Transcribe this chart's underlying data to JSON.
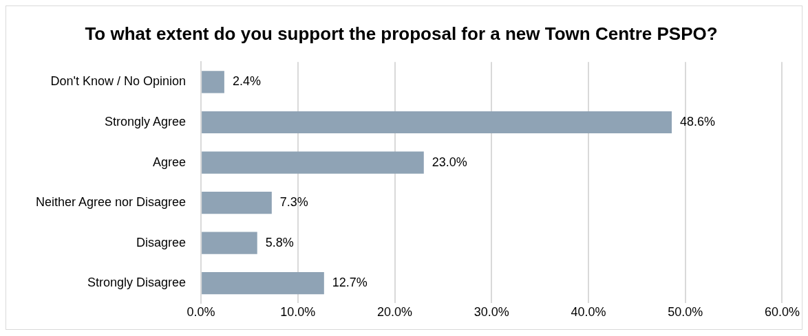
{
  "chart_data": {
    "type": "bar",
    "orientation": "horizontal",
    "title": "To what extent do you support the proposal for a new Town Centre PSPO?",
    "categories": [
      "Don't Know / No Opinion",
      "Strongly Agree",
      "Agree",
      "Neither Agree nor Disagree",
      "Disagree",
      "Strongly Disagree"
    ],
    "values": [
      2.4,
      48.6,
      23.0,
      7.3,
      5.8,
      12.7
    ],
    "value_labels": [
      "2.4%",
      "48.6%",
      "23.0%",
      "7.3%",
      "5.8%",
      "12.7%"
    ],
    "color": "#8fa3b5",
    "xlim": [
      0,
      60
    ],
    "xticks": [
      {
        "value": 0,
        "label": "0.0%"
      },
      {
        "value": 10,
        "label": "10.0%"
      },
      {
        "value": 20,
        "label": "20.0%"
      },
      {
        "value": 30,
        "label": "30.0%"
      },
      {
        "value": 40,
        "label": "40.0%"
      },
      {
        "value": 50,
        "label": "50.0%"
      },
      {
        "value": 60,
        "label": "60.0%"
      }
    ],
    "grid": "x"
  }
}
